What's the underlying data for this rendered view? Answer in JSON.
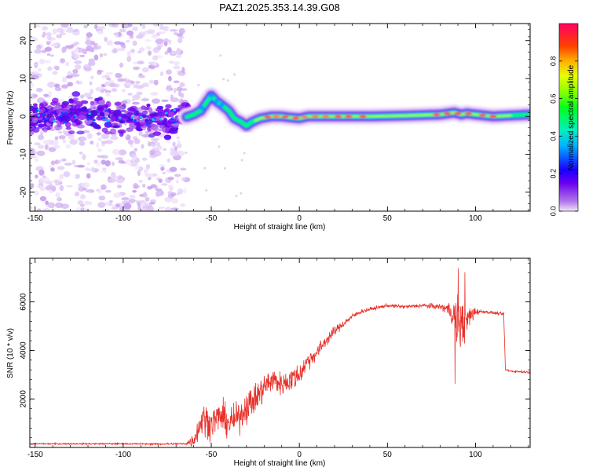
{
  "chart_data": [
    {
      "type": "heatmap",
      "title": "PAZ1.2025.353.14.39.G08",
      "xlabel": "Height of straight line (km)",
      "ylabel": "Frequency (Hz)",
      "xlim": [
        -153,
        131
      ],
      "ylim": [
        -25,
        24.5
      ],
      "xticks": [
        -150,
        -100,
        -50,
        0,
        50,
        100
      ],
      "yticks": [
        -20,
        -10,
        0,
        10,
        20
      ],
      "ridge": {
        "x": [
          -153,
          -120,
          -90,
          -70,
          -63,
          -60,
          -56,
          -53,
          -50,
          -47,
          -44,
          -40,
          -37,
          -33,
          -30,
          -27,
          -22,
          -16,
          -10,
          -5,
          0,
          5,
          20,
          40,
          60,
          80,
          88,
          92,
          95,
          100,
          110,
          131
        ],
        "freq": [
          0,
          0.5,
          -0.5,
          -1,
          0,
          0.5,
          1.5,
          3.5,
          5.5,
          4,
          3,
          1.5,
          -0.5,
          -1.5,
          -2.5,
          -1.5,
          -0.5,
          0,
          0,
          -0.3,
          -0.5,
          0,
          0,
          0,
          0.2,
          0.5,
          1,
          0.5,
          0.8,
          0.5,
          0,
          0.5
        ]
      },
      "colorbar": {
        "label": "Normalized spectral amplitude",
        "ticks": [
          "0.0",
          "0.2",
          "0.4",
          "0.6",
          "0.8"
        ],
        "range": [
          0,
          1
        ]
      }
    },
    {
      "type": "line",
      "xlabel": "Height of straight line (km)",
      "ylabel": "SNR (10 * v/v)",
      "xlim": [
        -153,
        131
      ],
      "ylim": [
        0,
        7800
      ],
      "xticks": [
        -150,
        -100,
        -50,
        0,
        50,
        100
      ],
      "yticks": [
        2000,
        4000,
        6000
      ],
      "color": "#e8302a",
      "envelope": {
        "x": [
          -153,
          -100,
          -80,
          -65,
          -60,
          -55,
          -50,
          -45,
          -40,
          -35,
          -30,
          -25,
          -20,
          -15,
          -10,
          -5,
          0,
          5,
          10,
          15,
          20,
          25,
          30,
          35,
          40,
          50,
          60,
          70,
          80,
          85,
          88,
          90,
          92,
          95,
          98,
          100,
          105,
          110,
          115,
          116,
          117,
          120,
          131
        ],
        "mean": [
          150,
          150,
          140,
          150,
          300,
          1200,
          1000,
          1300,
          1000,
          1200,
          1700,
          2000,
          2500,
          2800,
          2600,
          2800,
          3000,
          3600,
          3900,
          4400,
          4800,
          5100,
          5400,
          5600,
          5700,
          5850,
          5800,
          5850,
          5800,
          5700,
          5400,
          5200,
          5000,
          5200,
          5500,
          5600,
          5600,
          5550,
          5500,
          5500,
          3200,
          3150,
          3100
        ],
        "noise": [
          40,
          40,
          50,
          50,
          400,
          900,
          800,
          900,
          800,
          800,
          900,
          800,
          800,
          700,
          600,
          700,
          600,
          500,
          400,
          350,
          250,
          200,
          150,
          120,
          100,
          90,
          100,
          120,
          150,
          400,
          900,
          1500,
          1500,
          900,
          500,
          200,
          80,
          80,
          80,
          80,
          60,
          60,
          60
        ]
      }
    }
  ]
}
